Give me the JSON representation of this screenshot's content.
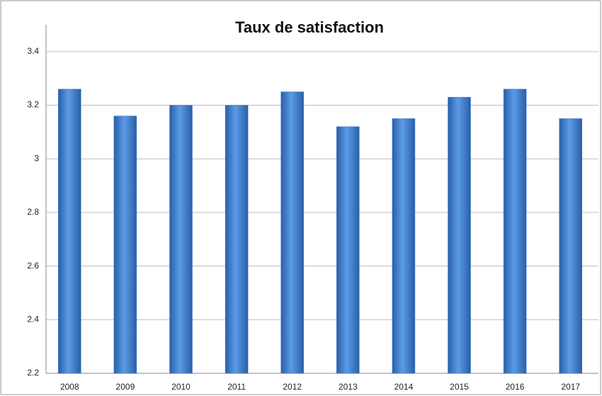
{
  "chart_data": {
    "type": "bar",
    "title": "Taux de satisfaction",
    "categories": [
      "2008",
      "2009",
      "2010",
      "2011",
      "2012",
      "2013",
      "2014",
      "2015",
      "2016",
      "2017"
    ],
    "values": [
      3.26,
      3.16,
      3.2,
      3.2,
      3.25,
      3.12,
      3.15,
      3.23,
      3.26,
      3.15
    ],
    "color": "#3a78c9",
    "ylim": [
      2.2,
      3.5
    ],
    "yticks": [
      2.2,
      2.4,
      2.6,
      2.8,
      3,
      3.2,
      3.4
    ],
    "grid": true
  }
}
